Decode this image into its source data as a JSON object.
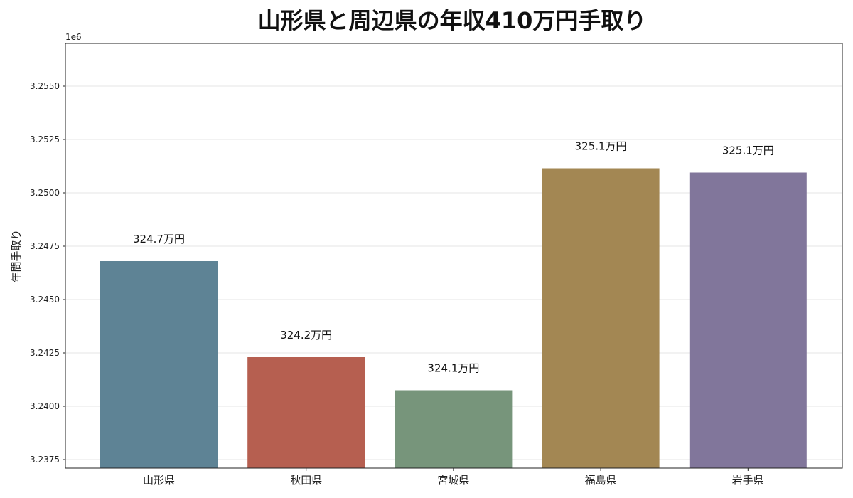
{
  "chart_data": {
    "type": "bar",
    "title": "山形県と周辺県の年収410万円手取り",
    "xlabel": "",
    "ylabel": "年間手取り",
    "y_offset_label": "1e6",
    "categories": [
      "山形県",
      "秋田県",
      "宮城県",
      "福島県",
      "岩手県"
    ],
    "values": [
      3246800,
      3242300,
      3240750,
      3251150,
      3250950
    ],
    "data_labels": [
      "324.7万円",
      "324.2万円",
      "324.1万円",
      "325.1万円",
      "325.1万円"
    ],
    "colors": [
      "#5e8395",
      "#b65f50",
      "#77957b",
      "#a38753",
      "#81769b"
    ],
    "ylim": [
      3237100,
      3257000
    ],
    "yticks": [
      3237500,
      3240000,
      3242500,
      3245000,
      3247500,
      3250000,
      3252500,
      3255000
    ],
    "ytick_labels": [
      "3.2375",
      "3.2400",
      "3.2425",
      "3.2450",
      "3.2475",
      "3.2500",
      "3.2525",
      "3.2550"
    ],
    "grid": "horizontal",
    "legend": "none"
  }
}
